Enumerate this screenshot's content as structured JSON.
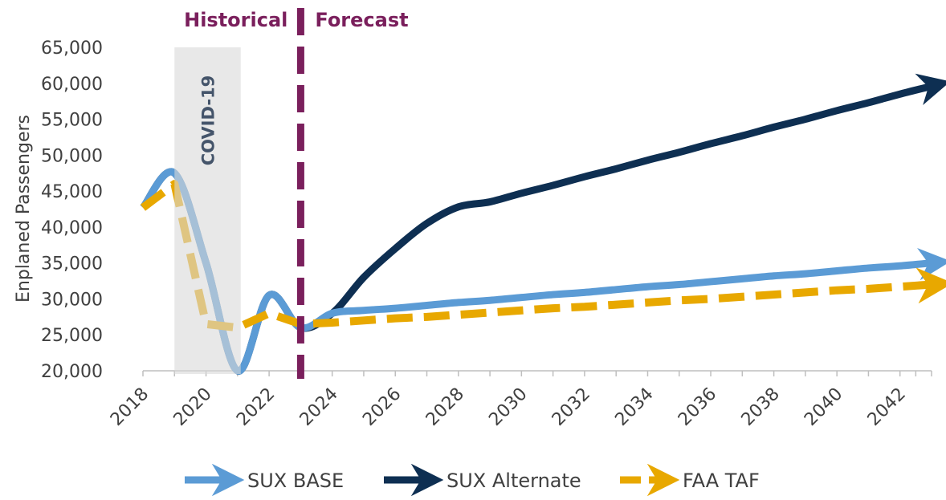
{
  "chart_data": {
    "type": "line",
    "y_label": "Enplaned Passengers",
    "annotations": {
      "historical": "Historical",
      "forecast": "Forecast",
      "covid": "COVID-19"
    },
    "covid_span": [
      2019,
      2021.1
    ],
    "divider": 2023,
    "x": [
      2018,
      2019,
      2020,
      2021,
      2022,
      2023,
      2024,
      2025,
      2026,
      2027,
      2028,
      2029,
      2030,
      2031,
      2032,
      2033,
      2034,
      2035,
      2036,
      2037,
      2038,
      2039,
      2040,
      2041,
      2042,
      2043
    ],
    "series": [
      {
        "name": "SUX BASE",
        "color": "#5b9bd5",
        "dashed": false,
        "values": [
          42700,
          47500,
          35000,
          20000,
          30500,
          26000,
          28000,
          28400,
          28700,
          29100,
          29500,
          29800,
          30200,
          30600,
          30900,
          31300,
          31700,
          32000,
          32400,
          32800,
          33200,
          33500,
          33900,
          34300,
          34600,
          35000
        ]
      },
      {
        "name": "SUX Alternate",
        "color": "#0e2f52",
        "dashed": false,
        "values": [
          42700,
          47500,
          35000,
          20000,
          30500,
          26000,
          28000,
          33000,
          37000,
          40500,
          42800,
          43500,
          44700,
          45800,
          47000,
          48100,
          49300,
          50400,
          51600,
          52700,
          53900,
          55000,
          56200,
          57300,
          58500,
          59600
        ]
      },
      {
        "name": "FAA TAF",
        "color": "#e8a800",
        "dashed": true,
        "values": [
          42700,
          46000,
          26500,
          26000,
          28000,
          26500,
          26700,
          27000,
          27300,
          27500,
          27800,
          28100,
          28400,
          28700,
          28900,
          29200,
          29500,
          29800,
          30000,
          30300,
          30600,
          30900,
          31200,
          31400,
          31700,
          32000
        ]
      }
    ],
    "xlim": [
      2018,
      2043
    ],
    "xticks": [
      2018,
      2020,
      2022,
      2024,
      2026,
      2028,
      2030,
      2032,
      2034,
      2036,
      2038,
      2040,
      2042
    ],
    "ylim": [
      20000,
      65000
    ],
    "yticks": [
      {
        "value": 20000,
        "label": "20,000"
      },
      {
        "value": 25000,
        "label": "25,000"
      },
      {
        "value": 30000,
        "label": "30,000"
      },
      {
        "value": 35000,
        "label": "35,000"
      },
      {
        "value": 40000,
        "label": "40,000"
      },
      {
        "value": 45000,
        "label": "45,000"
      },
      {
        "value": 50000,
        "label": "50,000"
      },
      {
        "value": 55000,
        "label": "55,000"
      },
      {
        "value": 60000,
        "label": "60,000"
      },
      {
        "value": 65000,
        "label": "65,000"
      }
    ]
  }
}
